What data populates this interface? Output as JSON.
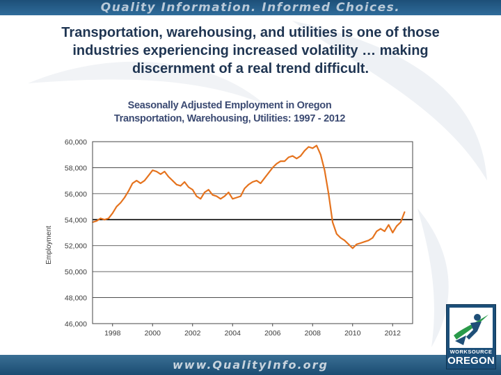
{
  "header": {
    "tagline": "Quality Information. Informed Choices."
  },
  "slide": {
    "heading_line1": "Transportation, warehousing, and utilities is one of those",
    "heading_line2": "industries experiencing increased volatility … making",
    "heading_line3": "discernment of a real trend difficult."
  },
  "footer": {
    "url": "www.QualityInfo.org"
  },
  "logo": {
    "line1": "WORKSOURCE",
    "line2": "OREGON"
  },
  "colors": {
    "series": "#e5731e",
    "brand_blue": "#1f4f78",
    "grid": "#333333",
    "reference_line": "#000000"
  },
  "chart_data": {
    "type": "line",
    "title_line1": "Seasonally Adjusted Employment in Oregon",
    "title_line2": "Transportation, Warehousing, Utilities:  1997 - 2012",
    "ylabel": "Employment",
    "xlabel": "",
    "ylim": [
      46000,
      60000
    ],
    "xlim": [
      1997.0,
      2013.0
    ],
    "y_ticks": [
      46000,
      48000,
      50000,
      52000,
      54000,
      56000,
      58000,
      60000
    ],
    "y_tick_labels": [
      "46,000",
      "48,000",
      "50,000",
      "52,000",
      "54,000",
      "56,000",
      "58,000",
      "60,000"
    ],
    "x_ticks": [
      1998,
      2000,
      2002,
      2004,
      2006,
      2008,
      2010,
      2012
    ],
    "x_tick_labels": [
      "1998",
      "2000",
      "2002",
      "2004",
      "2006",
      "2008",
      "2010",
      "2012"
    ],
    "grid": "horizontal",
    "reference_line_y": 54000,
    "series": [
      {
        "name": "",
        "x": [
          1997.0,
          1997.2,
          1997.4,
          1997.6,
          1997.8,
          1998.0,
          1998.2,
          1998.4,
          1998.6,
          1998.8,
          1999.0,
          1999.2,
          1999.4,
          1999.6,
          1999.8,
          2000.0,
          2000.2,
          2000.4,
          2000.6,
          2000.8,
          2001.0,
          2001.2,
          2001.4,
          2001.6,
          2001.8,
          2002.0,
          2002.2,
          2002.4,
          2002.6,
          2002.8,
          2003.0,
          2003.2,
          2003.4,
          2003.6,
          2003.8,
          2004.0,
          2004.2,
          2004.4,
          2004.6,
          2004.8,
          2005.0,
          2005.2,
          2005.4,
          2005.6,
          2005.8,
          2006.0,
          2006.2,
          2006.4,
          2006.6,
          2006.8,
          2007.0,
          2007.2,
          2007.4,
          2007.6,
          2007.8,
          2008.0,
          2008.2,
          2008.4,
          2008.6,
          2008.8,
          2009.0,
          2009.2,
          2009.4,
          2009.6,
          2009.8,
          2010.0,
          2010.2,
          2010.4,
          2010.6,
          2010.8,
          2011.0,
          2011.2,
          2011.4,
          2011.6,
          2011.8,
          2012.0,
          2012.2,
          2012.4,
          2012.6
        ],
        "values": [
          53800,
          53900,
          54100,
          54000,
          54100,
          54500,
          55000,
          55300,
          55700,
          56200,
          56800,
          57000,
          56800,
          57000,
          57400,
          57800,
          57700,
          57500,
          57700,
          57300,
          57000,
          56700,
          56600,
          56900,
          56500,
          56300,
          55800,
          55600,
          56100,
          56300,
          55900,
          55800,
          55600,
          55800,
          56100,
          55600,
          55700,
          55800,
          56400,
          56700,
          56900,
          57000,
          56800,
          57200,
          57600,
          58000,
          58300,
          58500,
          58500,
          58800,
          58900,
          58700,
          58900,
          59300,
          59600,
          59500,
          59700,
          59000,
          57800,
          56000,
          53800,
          52900,
          52600,
          52400,
          52100,
          51800,
          52100,
          52200,
          52300,
          52400,
          52600,
          53100,
          53300,
          53100,
          53600,
          53000,
          53500,
          53800,
          54600
        ]
      }
    ]
  }
}
